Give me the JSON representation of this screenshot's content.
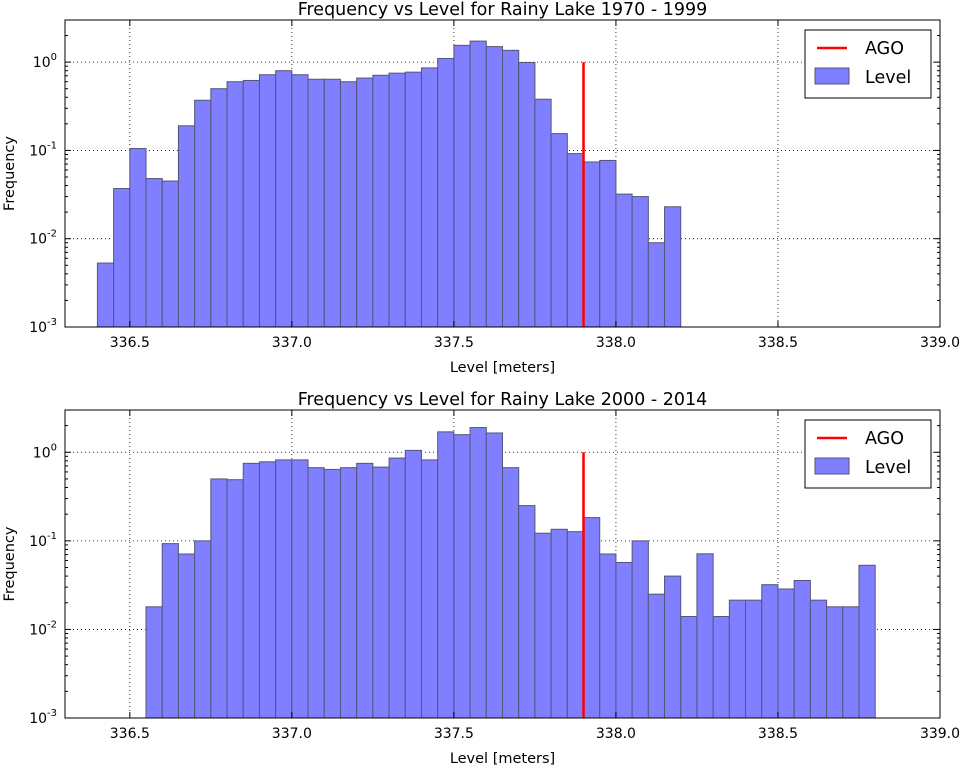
{
  "chart_data": [
    {
      "type": "bar",
      "title": "Frequency vs Level for Rainy Lake 1970 - 1999",
      "xlabel": "Level [meters]",
      "ylabel": "Frequency",
      "xlim": [
        336.3,
        339.0
      ],
      "ylim": [
        0.001,
        3.0
      ],
      "yscale": "log",
      "xticks": [
        336.5,
        337.0,
        337.5,
        338.0,
        338.5,
        339.0
      ],
      "xtick_labels": [
        "336.5",
        "337.0",
        "337.5",
        "338.0",
        "338.5",
        "339.0"
      ],
      "yticks": [
        0.001,
        0.01,
        0.1,
        1
      ],
      "ytick_labels": [
        {
          "base": "10",
          "exp": "-3"
        },
        {
          "base": "10",
          "exp": "-2"
        },
        {
          "base": "10",
          "exp": "-1"
        },
        {
          "base": "10",
          "exp": "0"
        }
      ],
      "grid": true,
      "legend_position": "top-right",
      "ago_line": {
        "name": "AGO",
        "x": 337.9,
        "y_top": 1.0,
        "color": "#ff0000"
      },
      "series": [
        {
          "name": "Level",
          "color": "#7f7fff",
          "edge_color": "#555577",
          "bin_start": 336.4,
          "bin_width": 0.05,
          "values": [
            0.0053,
            0.037,
            0.105,
            0.048,
            0.045,
            0.19,
            0.37,
            0.5,
            0.6,
            0.62,
            0.72,
            0.8,
            0.72,
            0.64,
            0.64,
            0.6,
            0.66,
            0.71,
            0.75,
            0.77,
            0.86,
            1.1,
            1.55,
            1.73,
            1.5,
            1.36,
            0.99,
            0.38,
            0.155,
            0.092,
            0.074,
            0.077,
            0.032,
            0.03,
            0.009,
            0.023
          ]
        }
      ]
    },
    {
      "type": "bar",
      "title": "Frequency vs Level for Rainy Lake 2000 - 2014",
      "xlabel": "Level [meters]",
      "ylabel": "Frequency",
      "xlim": [
        336.3,
        339.0
      ],
      "ylim": [
        0.001,
        3.0
      ],
      "yscale": "log",
      "xticks": [
        336.5,
        337.0,
        337.5,
        338.0,
        338.5,
        339.0
      ],
      "xtick_labels": [
        "336.5",
        "337.0",
        "337.5",
        "338.0",
        "338.5",
        "339.0"
      ],
      "yticks": [
        0.001,
        0.01,
        0.1,
        1
      ],
      "ytick_labels": [
        {
          "base": "10",
          "exp": "-3"
        },
        {
          "base": "10",
          "exp": "-2"
        },
        {
          "base": "10",
          "exp": "-1"
        },
        {
          "base": "10",
          "exp": "0"
        }
      ],
      "grid": true,
      "legend_position": "top-right",
      "ago_line": {
        "name": "AGO",
        "x": 337.9,
        "y_top": 1.0,
        "color": "#ff0000"
      },
      "series": [
        {
          "name": "Level",
          "color": "#7f7fff",
          "edge_color": "#555577",
          "bin_start": 336.55,
          "bin_width": 0.05,
          "values": [
            0.018,
            0.093,
            0.071,
            0.1,
            0.5,
            0.49,
            0.75,
            0.78,
            0.82,
            0.82,
            0.67,
            0.64,
            0.67,
            0.75,
            0.68,
            0.86,
            1.05,
            0.82,
            1.7,
            1.58,
            1.9,
            1.65,
            0.67,
            0.25,
            0.122,
            0.135,
            0.127,
            0.183,
            0.071,
            0.057,
            0.1,
            0.025,
            0.04,
            0.014,
            0.0714,
            0.014,
            0.0214,
            0.0214,
            0.032,
            0.0286,
            0.0357,
            0.0214,
            0.018,
            0.018,
            0.053
          ]
        }
      ]
    }
  ]
}
